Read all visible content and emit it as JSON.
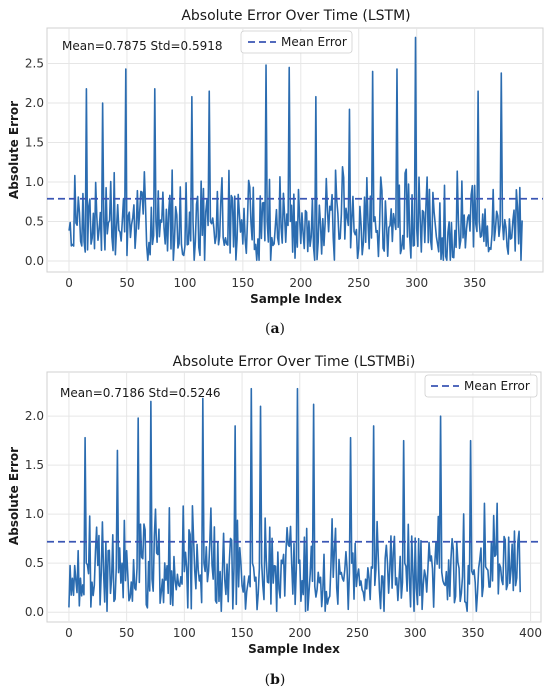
{
  "colors": {
    "line": "#2b6cb0",
    "mean": "#3a56b4",
    "grid": "#e6e6e6",
    "frame": "#d0d0d0"
  },
  "chart_data": [
    {
      "type": "line",
      "panel_label": "a",
      "title": "Absolute Error Over Time (LSTM)",
      "xlabel": "Sample Index",
      "ylabel": "Absolute Error",
      "xlim": [
        -19,
        409
      ],
      "ylim": [
        -0.14,
        2.95
      ],
      "xticks": [
        0,
        50,
        100,
        150,
        200,
        250,
        300,
        350
      ],
      "yticks": [
        0.0,
        0.5,
        1.0,
        1.5,
        2.0,
        2.5
      ],
      "grid": true,
      "legend": {
        "position": "top-center",
        "entries": [
          "Mean Error"
        ]
      },
      "annotation": "Mean=0.7875  Std=0.5918",
      "series": [
        {
          "name": "Absolute Error",
          "style": "solid",
          "n": 392,
          "mean": 0.7875,
          "std": 0.5918,
          "max": 2.83,
          "peaks": [
            [
              15,
              2.18
            ],
            [
              29,
              2.0
            ],
            [
              49,
              2.43
            ],
            [
              74,
              2.18
            ],
            [
              106,
              2.08
            ],
            [
              121,
              2.15
            ],
            [
              170,
              2.48
            ],
            [
              190,
              2.45
            ],
            [
              213,
              2.08
            ],
            [
              242,
              1.92
            ],
            [
              262,
              2.4
            ],
            [
              283,
              2.43
            ],
            [
              299,
              2.83
            ],
            [
              353,
              2.15
            ],
            [
              373,
              2.38
            ]
          ]
        },
        {
          "name": "Mean Error",
          "style": "dashed",
          "value": 0.7875
        }
      ]
    },
    {
      "type": "line",
      "panel_label": "b",
      "title": "Absolute Error Over Time (LSTMBi)",
      "xlabel": "Sample Index",
      "ylabel": "Absolute Error",
      "xlim": [
        -19,
        409
      ],
      "ylim": [
        -0.1,
        2.45
      ],
      "xticks": [
        0,
        50,
        100,
        150,
        200,
        250,
        300,
        350,
        400
      ],
      "yticks": [
        0.0,
        0.5,
        1.0,
        1.5,
        2.0
      ],
      "grid": true,
      "legend": {
        "position": "top-right",
        "entries": [
          "Mean Error"
        ]
      },
      "annotation": "Mean=0.7186  Std=0.5246",
      "series": [
        {
          "name": "Absolute Error",
          "style": "solid",
          "n": 392,
          "mean": 0.7186,
          "std": 0.5246,
          "max": 2.28,
          "peaks": [
            [
              14,
              1.78
            ],
            [
              42,
              1.65
            ],
            [
              60,
              1.98
            ],
            [
              71,
              2.15
            ],
            [
              116,
              2.18
            ],
            [
              144,
              1.9
            ],
            [
              158,
              2.28
            ],
            [
              166,
              2.1
            ],
            [
              198,
              2.28
            ],
            [
              212,
              2.12
            ],
            [
              244,
              1.78
            ],
            [
              264,
              1.9
            ],
            [
              290,
              1.75
            ],
            [
              322,
              2.0
            ],
            [
              348,
              1.75
            ]
          ]
        },
        {
          "name": "Mean Error",
          "style": "dashed",
          "value": 0.7186
        }
      ]
    }
  ]
}
